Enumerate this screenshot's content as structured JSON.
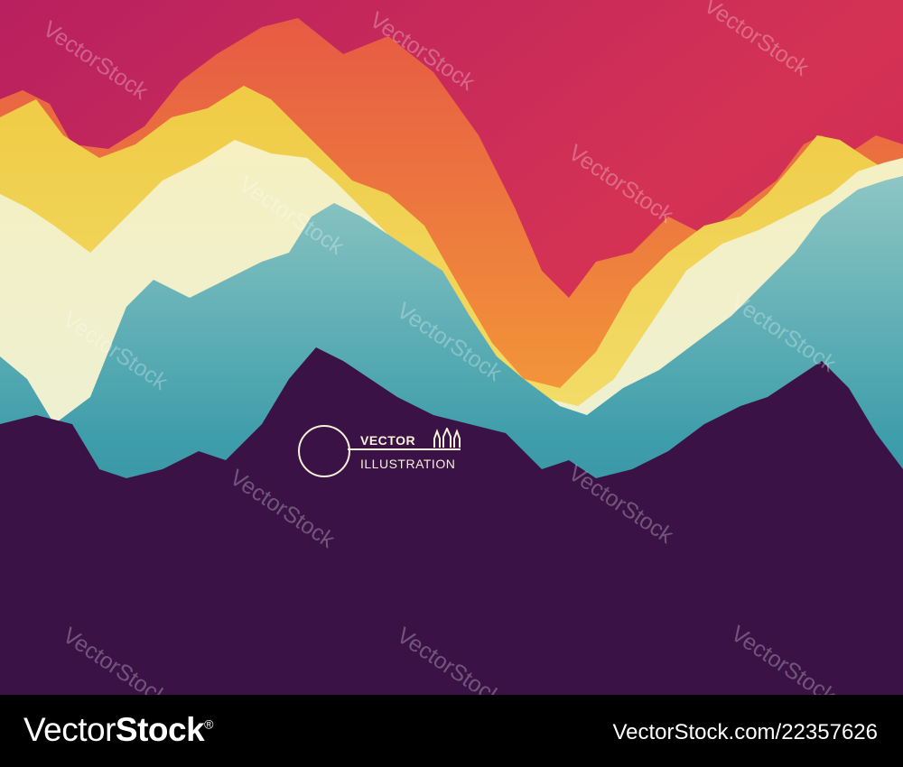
{
  "illustration": {
    "emblem": {
      "line1": "VECTOR",
      "line2": "ILLUSTRATION"
    },
    "watermark_text": "VectorStock",
    "palette": {
      "sky": "#c9215a",
      "orange": "#f3812f",
      "yellow": "#f1dd52",
      "cream": "#f4f3d3",
      "teal": "#2f8f9d",
      "purple": "#3b1246"
    }
  },
  "footer": {
    "brand_prefix": "Vector",
    "brand_suffix": "Stock",
    "registered": "®",
    "stock_id": "VectorStock.com/22357626"
  }
}
